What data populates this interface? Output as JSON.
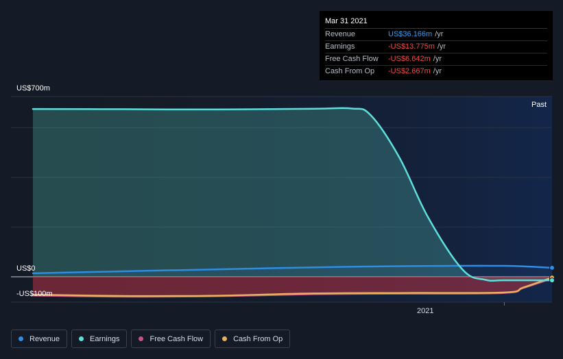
{
  "tooltip": {
    "date": "Mar 31 2021",
    "rows": [
      {
        "name": "Revenue",
        "value": "US$36.166m",
        "unit": "/yr",
        "color": "#3b9be8"
      },
      {
        "name": "Earnings",
        "value": "-US$13.775m",
        "unit": "/yr",
        "color": "#f04b4b"
      },
      {
        "name": "Free Cash Flow",
        "value": "-US$6.642m",
        "unit": "/yr",
        "color": "#f04b4b"
      },
      {
        "name": "Cash From Op",
        "value": "-US$2.667m",
        "unit": "/yr",
        "color": "#f04b4b"
      }
    ]
  },
  "labels": {
    "past": "Past"
  },
  "legend": [
    {
      "label": "Revenue",
      "color": "#2e8de4"
    },
    {
      "label": "Earnings",
      "color": "#5de0dc"
    },
    {
      "label": "Free Cash Flow",
      "color": "#cc4f86"
    },
    {
      "label": "Cash From Op",
      "color": "#e8b15e"
    }
  ],
  "chart_data": {
    "type": "area",
    "y_tick_labels": [
      "US$700m",
      "US$0",
      "-US$100m"
    ],
    "x_tick_labels": [
      "2021"
    ],
    "x_ticks": [
      2021.0
    ],
    "xlim": [
      2018.53,
      2021.25
    ],
    "ylim": [
      -100,
      700
    ],
    "grid": true,
    "series": [
      {
        "name": "Revenue",
        "color": "#2e8de4",
        "x": [
          2018.53,
          2019.0,
          2019.5,
          2020.0,
          2020.5,
          2021.0,
          2021.25
        ],
        "y": [
          14,
          22,
          30,
          38,
          43,
          44,
          36
        ]
      },
      {
        "name": "Earnings",
        "color": "#5de0dc",
        "x": [
          2018.53,
          2019.0,
          2019.5,
          2020.0,
          2020.2,
          2020.3,
          2020.45,
          2020.6,
          2020.78,
          2020.9,
          2021.0,
          2021.25
        ],
        "y": [
          675,
          674,
          673,
          676,
          677,
          650,
          480,
          240,
          30,
          -12,
          -14,
          -14
        ]
      },
      {
        "name": "Free Cash Flow",
        "color": "#cc4f86",
        "x": [
          2018.53,
          2019.0,
          2019.5,
          2020.0,
          2020.5,
          2021.0,
          2021.1,
          2021.25
        ],
        "y": [
          -75,
          -80,
          -78,
          -70,
          -68,
          -65,
          -45,
          -7
        ]
      },
      {
        "name": "Cash From Op",
        "color": "#e8b15e",
        "x": [
          2018.53,
          2019.0,
          2019.5,
          2020.0,
          2020.5,
          2021.0,
          2021.1,
          2021.25
        ],
        "y": [
          -72,
          -77,
          -76,
          -67,
          -65,
          -63,
          -43,
          -3
        ]
      }
    ]
  }
}
